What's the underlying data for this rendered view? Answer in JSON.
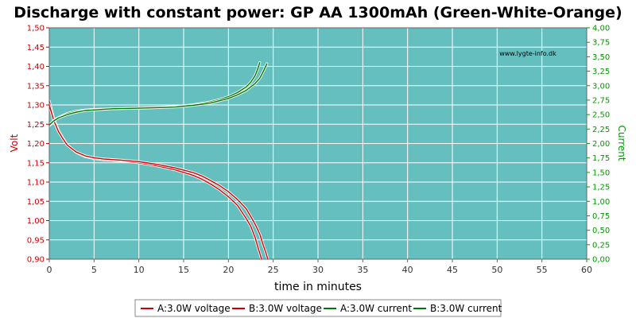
{
  "chart_data": {
    "type": "line",
    "title": "Discharge with constant power: GP AA 1300mAh (Green-White-Orange)",
    "xlabel": "time in minutes",
    "ylabel": "Volt",
    "y2label": "Current",
    "watermark": "www.lygte-info.dk",
    "xlim": [
      0,
      60
    ],
    "ylim": [
      0.9,
      1.5
    ],
    "y2lim": [
      0,
      4
    ],
    "x_ticks": [
      0,
      5,
      10,
      15,
      20,
      25,
      30,
      35,
      40,
      45,
      50,
      55,
      60
    ],
    "x_tick_labels": [
      "0",
      "5",
      "10",
      "15",
      "20",
      "25",
      "30",
      "35",
      "40",
      "45",
      "50",
      "55",
      "60"
    ],
    "y_ticks": [
      0.9,
      0.95,
      1.0,
      1.05,
      1.1,
      1.15,
      1.2,
      1.25,
      1.3,
      1.35,
      1.4,
      1.45,
      1.5
    ],
    "y_tick_labels": [
      "0,90",
      "0,95",
      "1,00",
      "1,05",
      "1,10",
      "1,15",
      "1,20",
      "1,25",
      "1,30",
      "1,35",
      "1,40",
      "1,45",
      "1,50"
    ],
    "y2_ticks": [
      0,
      0.25,
      0.5,
      0.75,
      1.0,
      1.25,
      1.5,
      1.75,
      2.0,
      2.25,
      2.5,
      2.75,
      3.0,
      3.25,
      3.5,
      3.75,
      4.0
    ],
    "y2_tick_labels": [
      "0,00",
      "0,25",
      "0,50",
      "0,75",
      "1,00",
      "1,25",
      "1,50",
      "1,75",
      "2,00",
      "2,25",
      "2,50",
      "2,75",
      "3,00",
      "3,25",
      "3,50",
      "3,75",
      "4,00"
    ],
    "grid": true,
    "legend_position": "bottom-center",
    "colors": {
      "plot_bg": "#66bfbf",
      "grid": "#ffffff",
      "voltage": "#cc0000",
      "current": "#007700",
      "left_axis": "#cc0000",
      "right_axis": "#009900"
    },
    "series": [
      {
        "name": "A:3.0W voltage",
        "axis": "left",
        "color": "#cc0000",
        "x": [
          0,
          0.5,
          1,
          1.5,
          2,
          3,
          4,
          5,
          6,
          8,
          10,
          12,
          14,
          16,
          17,
          18,
          19,
          20,
          21,
          22,
          22.5,
          23,
          23.3,
          23.5,
          23.7
        ],
        "y": [
          1.31,
          1.265,
          1.235,
          1.215,
          1.197,
          1.177,
          1.166,
          1.161,
          1.158,
          1.155,
          1.15,
          1.142,
          1.132,
          1.118,
          1.108,
          1.095,
          1.08,
          1.062,
          1.04,
          1.005,
          0.985,
          0.955,
          0.93,
          0.915,
          0.9
        ]
      },
      {
        "name": "B:3.0W voltage",
        "axis": "left",
        "color": "#cc0000",
        "x": [
          0,
          0.5,
          1,
          1.5,
          2,
          3,
          4,
          5,
          6,
          8,
          10,
          12,
          14,
          16,
          17,
          18,
          19,
          20,
          21,
          22,
          23,
          23.5,
          23.9,
          24.2,
          24.4
        ],
        "y": [
          1.3,
          1.26,
          1.232,
          1.213,
          1.196,
          1.178,
          1.168,
          1.163,
          1.16,
          1.157,
          1.153,
          1.146,
          1.137,
          1.125,
          1.116,
          1.104,
          1.091,
          1.075,
          1.055,
          1.03,
          0.99,
          0.965,
          0.935,
          0.915,
          0.9
        ]
      },
      {
        "name": "A:3.0W current",
        "axis": "right",
        "color": "#007700",
        "x": [
          0,
          0.5,
          1,
          2,
          3,
          4,
          5,
          7,
          10,
          12,
          14,
          16,
          18,
          19,
          20,
          21,
          22,
          22.5,
          23,
          23.3,
          23.5
        ],
        "y": [
          2.3,
          2.4,
          2.45,
          2.52,
          2.56,
          2.58,
          2.59,
          2.6,
          2.61,
          2.62,
          2.64,
          2.67,
          2.72,
          2.76,
          2.81,
          2.88,
          2.98,
          3.06,
          3.18,
          3.3,
          3.4
        ]
      },
      {
        "name": "B:3.0W current",
        "axis": "right",
        "color": "#007700",
        "x": [
          0,
          0.5,
          1,
          2,
          3,
          4,
          5,
          7,
          10,
          12,
          14,
          16,
          18,
          19,
          20,
          21,
          22,
          23,
          23.5,
          24,
          24.3
        ],
        "y": [
          2.32,
          2.39,
          2.44,
          2.5,
          2.54,
          2.57,
          2.58,
          2.6,
          2.61,
          2.62,
          2.63,
          2.66,
          2.7,
          2.74,
          2.78,
          2.84,
          2.92,
          3.04,
          3.13,
          3.28,
          3.38
        ]
      }
    ]
  }
}
